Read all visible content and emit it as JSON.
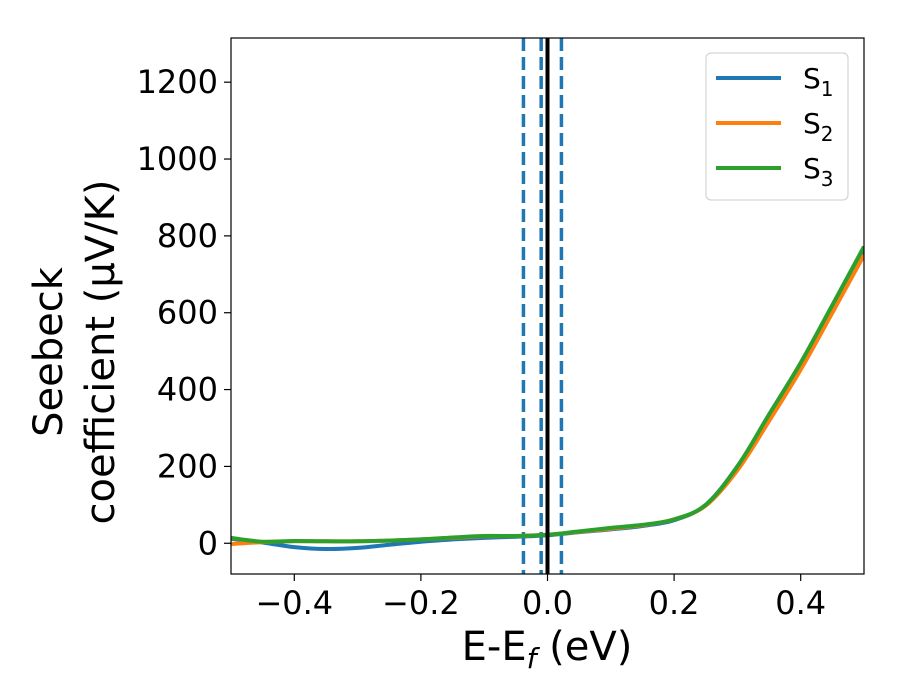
{
  "chart_data": {
    "type": "line",
    "xlabel": {
      "main": "E-E",
      "sub": "f",
      "suffix": " (eV)"
    },
    "ylabel_lines": [
      "Seebeck",
      "coefficient  (μV/K)"
    ],
    "xlim": [
      -0.5,
      0.5
    ],
    "ylim": [
      -80,
      1315
    ],
    "xticks": [
      -0.4,
      -0.2,
      0.0,
      0.2,
      0.4
    ],
    "xtick_labels": [
      "−0.4",
      "−0.2",
      "0.0",
      "0.2",
      "0.4"
    ],
    "yticks": [
      0,
      200,
      400,
      600,
      800,
      1000,
      1200
    ],
    "ytick_labels": [
      "0",
      "200",
      "400",
      "600",
      "800",
      "1000",
      "1200"
    ],
    "grid": false,
    "legend_position": "top-right",
    "vlines": [
      {
        "x": 0.0,
        "style": "solid",
        "color": "#000000"
      },
      {
        "x": -0.038,
        "style": "dashed",
        "color": "#1f77b4"
      },
      {
        "x": -0.01,
        "style": "dashed",
        "color": "#1f77b4"
      },
      {
        "x": 0.022,
        "style": "dashed",
        "color": "#1f77b4"
      }
    ],
    "series": [
      {
        "name": "S",
        "sub": "1",
        "color": "#1f77b4",
        "x": [
          -0.5,
          -0.45,
          -0.4,
          -0.35,
          -0.3,
          -0.25,
          -0.2,
          -0.15,
          -0.1,
          -0.05,
          0.0,
          0.05,
          0.1,
          0.15,
          0.2,
          0.25,
          0.3,
          0.35,
          0.4,
          0.45,
          0.5
        ],
        "y": [
          12,
          2,
          -10,
          -15,
          -12,
          -4,
          4,
          10,
          14,
          17,
          21,
          29,
          36,
          45,
          60,
          100,
          200,
          330,
          465,
          610,
          760
        ]
      },
      {
        "name": "S",
        "sub": "2",
        "color": "#ff7f0e",
        "x": [
          -0.5,
          -0.45,
          -0.4,
          -0.35,
          -0.3,
          -0.25,
          -0.2,
          -0.15,
          -0.1,
          -0.05,
          0.0,
          0.05,
          0.1,
          0.15,
          0.2,
          0.25,
          0.3,
          0.35,
          0.4,
          0.45,
          0.5
        ],
        "y": [
          -2,
          3,
          5,
          5,
          5,
          7,
          10,
          14,
          18,
          19,
          22,
          30,
          38,
          47,
          62,
          98,
          190,
          318,
          452,
          600,
          750
        ]
      },
      {
        "name": "S",
        "sub": "3",
        "color": "#2ca02c",
        "x": [
          -0.5,
          -0.45,
          -0.4,
          -0.35,
          -0.3,
          -0.25,
          -0.2,
          -0.15,
          -0.1,
          -0.05,
          0.0,
          0.05,
          0.1,
          0.15,
          0.2,
          0.25,
          0.3,
          0.35,
          0.4,
          0.45,
          0.5
        ],
        "y": [
          14,
          4,
          6,
          5,
          5,
          7,
          10,
          15,
          19,
          19,
          22,
          31,
          40,
          48,
          62,
          100,
          200,
          335,
          470,
          620,
          772
        ]
      }
    ]
  }
}
